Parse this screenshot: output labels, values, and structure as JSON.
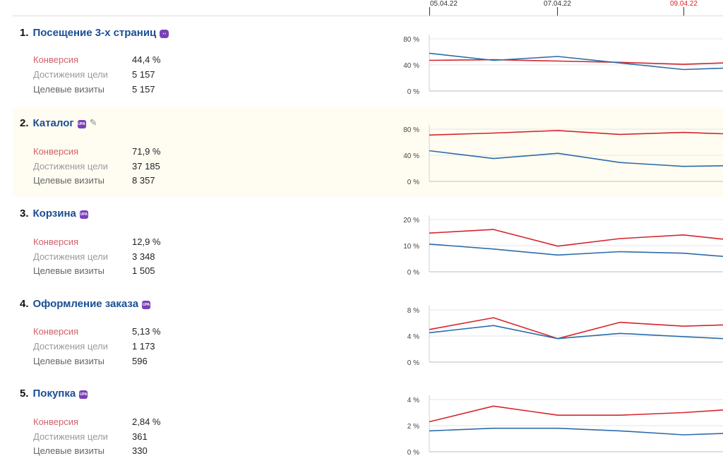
{
  "dates": [
    {
      "label": "05.04.22",
      "holiday": false
    },
    {
      "label": "07.04.22",
      "holiday": false
    },
    {
      "label": "09.04.22",
      "holiday": true
    }
  ],
  "colors": {
    "series_red": "#d6242c",
    "series_blue": "#2b6ca8",
    "title": "#1a4f94",
    "badge": "#7b3fb8"
  },
  "goals": [
    {
      "number": "1.",
      "name": "Посещение 3-х страниц",
      "badge_icon": "goal-oval-icon",
      "editable": false,
      "metrics": [
        {
          "label": "Конверсия",
          "value": "44,4 %"
        },
        {
          "label": "Достижения цели",
          "value": "5 157"
        },
        {
          "label": "Целевые визиты",
          "value": "5 157"
        }
      ]
    },
    {
      "number": "2.",
      "name": "Каталог",
      "badge_icon": "upa-badge-icon",
      "editable": true,
      "metrics": [
        {
          "label": "Конверсия",
          "value": "71,9 %"
        },
        {
          "label": "Достижения цели",
          "value": "37 185"
        },
        {
          "label": "Целевые визиты",
          "value": "8 357"
        }
      ]
    },
    {
      "number": "3.",
      "name": "Корзина",
      "badge_icon": "upa-badge-icon",
      "editable": false,
      "metrics": [
        {
          "label": "Конверсия",
          "value": "12,9 %"
        },
        {
          "label": "Достижения цели",
          "value": "3 348"
        },
        {
          "label": "Целевые визиты",
          "value": "1 505"
        }
      ]
    },
    {
      "number": "4.",
      "name": "Оформление заказа",
      "badge_icon": "upa-badge-icon",
      "editable": false,
      "metrics": [
        {
          "label": "Конверсия",
          "value": "5,13 %"
        },
        {
          "label": "Достижения цели",
          "value": "1 173"
        },
        {
          "label": "Целевые визиты",
          "value": "596"
        }
      ]
    },
    {
      "number": "5.",
      "name": "Покупка",
      "badge_icon": "upa-badge-icon",
      "editable": false,
      "metrics": [
        {
          "label": "Конверсия",
          "value": "2,84 %"
        },
        {
          "label": "Достижения цели",
          "value": "361"
        },
        {
          "label": "Целевые визиты",
          "value": "330"
        }
      ]
    }
  ],
  "chart_data": [
    {
      "type": "line",
      "ylim": [
        0,
        80
      ],
      "yticks": [
        "0 %",
        "40 %",
        "80 %"
      ],
      "x": [
        "05.04.22",
        "06.04.22",
        "07.04.22",
        "08.04.22",
        "09.04.22",
        "10.04.22"
      ],
      "series": [
        {
          "color": "#d6242c",
          "values": [
            47,
            48,
            46,
            44,
            41,
            43
          ]
        },
        {
          "color": "#2b6ca8",
          "values": [
            58,
            47,
            53,
            43,
            33,
            35
          ]
        }
      ]
    },
    {
      "type": "line",
      "ylim": [
        0,
        80
      ],
      "yticks": [
        "0 %",
        "40 %",
        "80 %"
      ],
      "x": [
        "05.04.22",
        "06.04.22",
        "07.04.22",
        "08.04.22",
        "09.04.22",
        "10.04.22"
      ],
      "series": [
        {
          "color": "#d6242c",
          "values": [
            71,
            74,
            78,
            72,
            75,
            73
          ]
        },
        {
          "color": "#2b6ca8",
          "values": [
            47,
            35,
            43,
            29,
            23,
            24
          ]
        }
      ]
    },
    {
      "type": "line",
      "ylim": [
        0,
        20
      ],
      "yticks": [
        "0 %",
        "10 %",
        "20 %"
      ],
      "x": [
        "05.04.22",
        "06.04.22",
        "07.04.22",
        "08.04.22",
        "09.04.22",
        "10.04.22"
      ],
      "series": [
        {
          "color": "#d6242c",
          "values": [
            14.8,
            16.2,
            9.8,
            12.7,
            14.1,
            12.5
          ]
        },
        {
          "color": "#2b6ca8",
          "values": [
            10.6,
            8.7,
            6.4,
            7.7,
            7.1,
            5.9
          ]
        }
      ]
    },
    {
      "type": "line",
      "ylim": [
        0,
        8
      ],
      "yticks": [
        "0 %",
        "4 %",
        "8 %"
      ],
      "x": [
        "05.04.22",
        "06.04.22",
        "07.04.22",
        "08.04.22",
        "09.04.22",
        "10.04.22"
      ],
      "series": [
        {
          "color": "#d6242c",
          "values": [
            5.0,
            6.8,
            3.6,
            6.1,
            5.5,
            5.7
          ]
        },
        {
          "color": "#2b6ca8",
          "values": [
            4.5,
            5.6,
            3.6,
            4.4,
            3.9,
            3.6
          ]
        }
      ]
    },
    {
      "type": "line",
      "ylim": [
        0,
        4
      ],
      "yticks": [
        "0 %",
        "2 %",
        "4 %"
      ],
      "x": [
        "05.04.22",
        "06.04.22",
        "07.04.22",
        "08.04.22",
        "09.04.22",
        "10.04.22"
      ],
      "series": [
        {
          "color": "#d6242c",
          "values": [
            2.3,
            3.5,
            2.8,
            2.8,
            3.0,
            3.2
          ]
        },
        {
          "color": "#2b6ca8",
          "values": [
            1.6,
            1.8,
            1.8,
            1.6,
            1.3,
            1.4
          ]
        }
      ]
    }
  ]
}
